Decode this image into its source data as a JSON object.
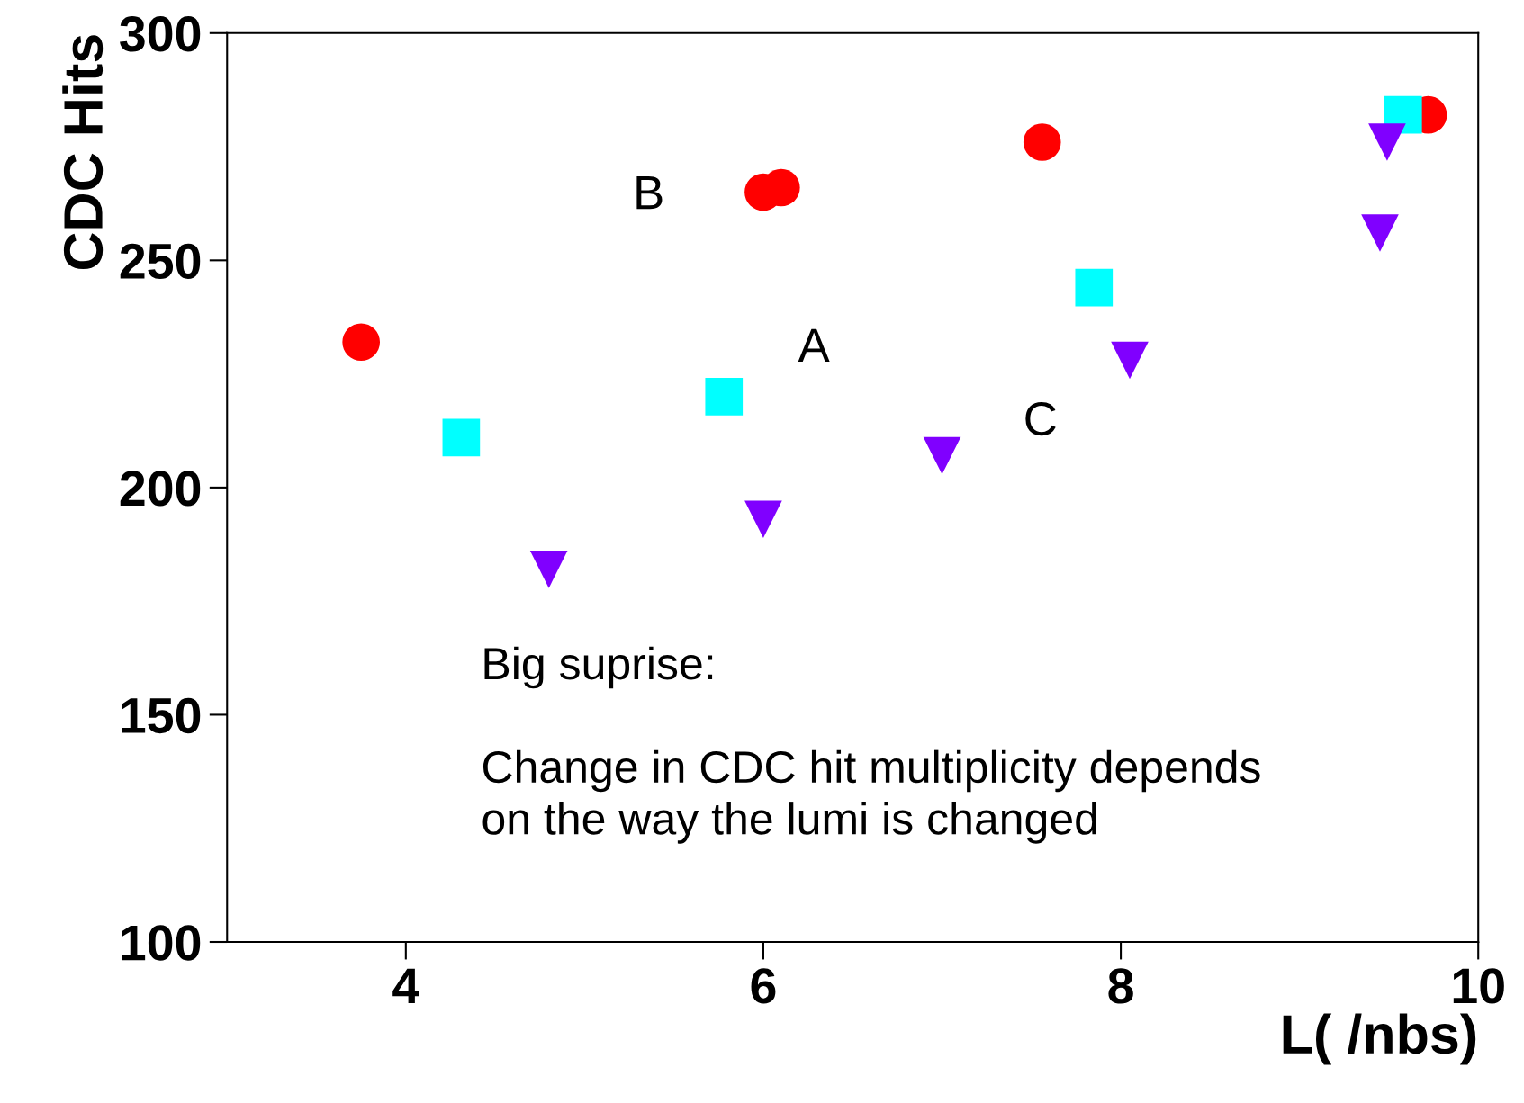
{
  "chart_data": {
    "type": "scatter",
    "xlabel": "L( /nbs)",
    "ylabel": "CDC Hits",
    "xlim": [
      3,
      10
    ],
    "ylim": [
      100,
      300
    ],
    "xticks": [
      4,
      6,
      8,
      10
    ],
    "yticks": [
      100,
      150,
      200,
      250,
      300
    ],
    "grid": false,
    "legend": false,
    "series": [
      {
        "color": "#ff0000",
        "marker": "circle",
        "x": [
          3.75,
          6.0,
          6.1,
          7.56,
          9.72
        ],
        "values": [
          232,
          265,
          266,
          276,
          282
        ]
      },
      {
        "color": "#00ffff",
        "marker": "square",
        "x": [
          4.31,
          5.78,
          7.85,
          9.58
        ],
        "values": [
          211,
          220,
          244,
          282
        ]
      },
      {
        "color": "#8000ff",
        "marker": "triangle",
        "x": [
          4.8,
          6.0,
          7.0,
          8.05,
          9.45,
          9.49
        ],
        "values": [
          182,
          193,
          207,
          228,
          256,
          276
        ]
      }
    ],
    "annotations": [
      "B",
      "A",
      "C",
      "Big suprise:\n\nChange in CDC hit multiplicity depends\non the way the lumi is changed"
    ]
  }
}
